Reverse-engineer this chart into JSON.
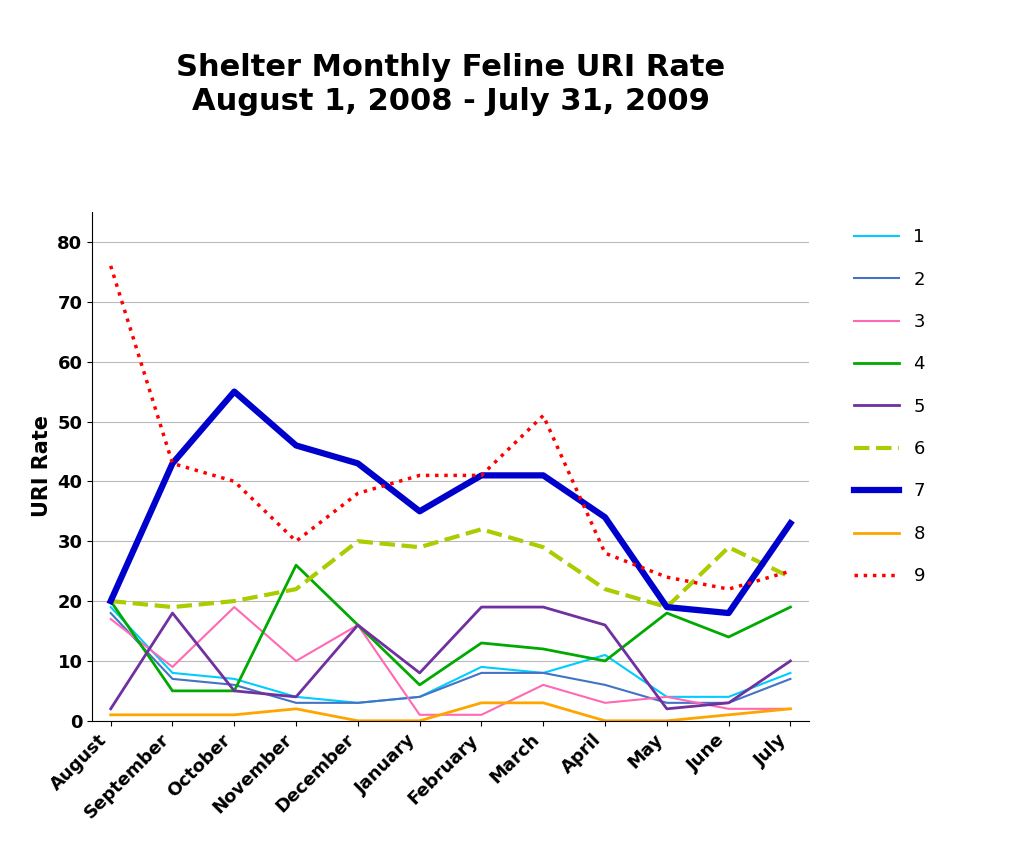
{
  "title_line1": "Shelter Monthly Feline URI Rate",
  "title_line2": "August 1, 2008 - July 31, 2009",
  "ylabel": "URI Rate",
  "months": [
    "August",
    "September",
    "October",
    "November",
    "December",
    "January",
    "February",
    "March",
    "April",
    "May",
    "June",
    "July"
  ],
  "ylim": [
    0,
    85
  ],
  "yticks": [
    0,
    10,
    20,
    30,
    40,
    50,
    60,
    70,
    80
  ],
  "series": [
    {
      "label": "1",
      "color": "#00CCFF",
      "linestyle": "-",
      "linewidth": 1.5,
      "values": [
        19,
        8,
        7,
        4,
        3,
        4,
        9,
        8,
        11,
        4,
        4,
        8
      ]
    },
    {
      "label": "2",
      "color": "#4472C4",
      "linestyle": "-",
      "linewidth": 1.5,
      "values": [
        18,
        7,
        6,
        3,
        3,
        4,
        8,
        8,
        6,
        3,
        3,
        7
      ]
    },
    {
      "label": "3",
      "color": "#FF69B4",
      "linestyle": "-",
      "linewidth": 1.5,
      "values": [
        17,
        9,
        19,
        10,
        16,
        1,
        1,
        6,
        3,
        4,
        2,
        2
      ]
    },
    {
      "label": "4",
      "color": "#00AA00",
      "linestyle": "-",
      "linewidth": 2.0,
      "values": [
        20,
        5,
        5,
        26,
        16,
        6,
        13,
        12,
        10,
        18,
        14,
        19
      ]
    },
    {
      "label": "5",
      "color": "#7030A0",
      "linestyle": "-",
      "linewidth": 2.0,
      "values": [
        2,
        18,
        5,
        4,
        16,
        8,
        19,
        19,
        16,
        2,
        3,
        10
      ]
    },
    {
      "label": "6",
      "color": "#AACC00",
      "linestyle": "--",
      "linewidth": 3.0,
      "values": [
        20,
        19,
        20,
        22,
        30,
        29,
        32,
        29,
        22,
        19,
        29,
        24
      ]
    },
    {
      "label": "7",
      "color": "#0000CC",
      "linestyle": "-",
      "linewidth": 4.5,
      "values": [
        20,
        43,
        55,
        46,
        43,
        35,
        41,
        41,
        34,
        19,
        18,
        33
      ]
    },
    {
      "label": "8",
      "color": "#FFA500",
      "linestyle": "-",
      "linewidth": 2.0,
      "values": [
        1,
        1,
        1,
        2,
        0,
        0,
        3,
        3,
        0,
        0,
        1,
        2
      ]
    },
    {
      "label": "9",
      "color": "#FF0000",
      "linestyle": ":",
      "linewidth": 2.5,
      "values": [
        76,
        43,
        40,
        30,
        38,
        41,
        41,
        51,
        28,
        24,
        22,
        25
      ]
    }
  ],
  "background_color": "#FFFFFF",
  "grid_color": "#BBBBBB",
  "title_fontsize": 22,
  "axis_label_fontsize": 15,
  "tick_fontsize": 13,
  "legend_fontsize": 13
}
